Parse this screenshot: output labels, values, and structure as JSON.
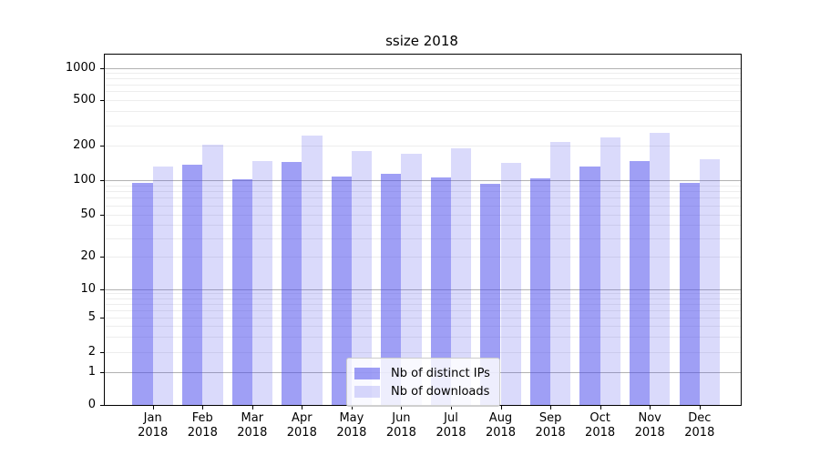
{
  "chart_data": {
    "type": "bar",
    "title": "ssize 2018",
    "categories": [
      "Jan 2018",
      "Feb 2018",
      "Mar 2018",
      "Apr 2018",
      "May 2018",
      "Jun 2018",
      "Jul 2018",
      "Aug 2018",
      "Sep 2018",
      "Oct 2018",
      "Nov 2018",
      "Dec 2018"
    ],
    "series": [
      {
        "name": "Nb of distinct IPs",
        "color": "rgba(70,70,235,0.52)",
        "values": [
          94,
          137,
          101,
          143,
          108,
          113,
          106,
          93,
          104,
          130,
          147,
          94
        ]
      },
      {
        "name": "Nb of downloads",
        "color": "rgba(70,70,235,0.20)",
        "values": [
          132,
          205,
          147,
          243,
          180,
          171,
          190,
          140,
          216,
          235,
          257,
          152
        ]
      }
    ],
    "y_ticks": [
      0,
      1,
      2,
      5,
      10,
      20,
      50,
      100,
      200,
      500,
      1000
    ],
    "y_scale": "symlog",
    "ylim": [
      0,
      2000
    ],
    "xlabel": "",
    "ylabel": "",
    "grid": "both",
    "legend_position": "lower center",
    "grid_major_color": "#b2b2b2",
    "grid_minor_color": "#ededed"
  }
}
